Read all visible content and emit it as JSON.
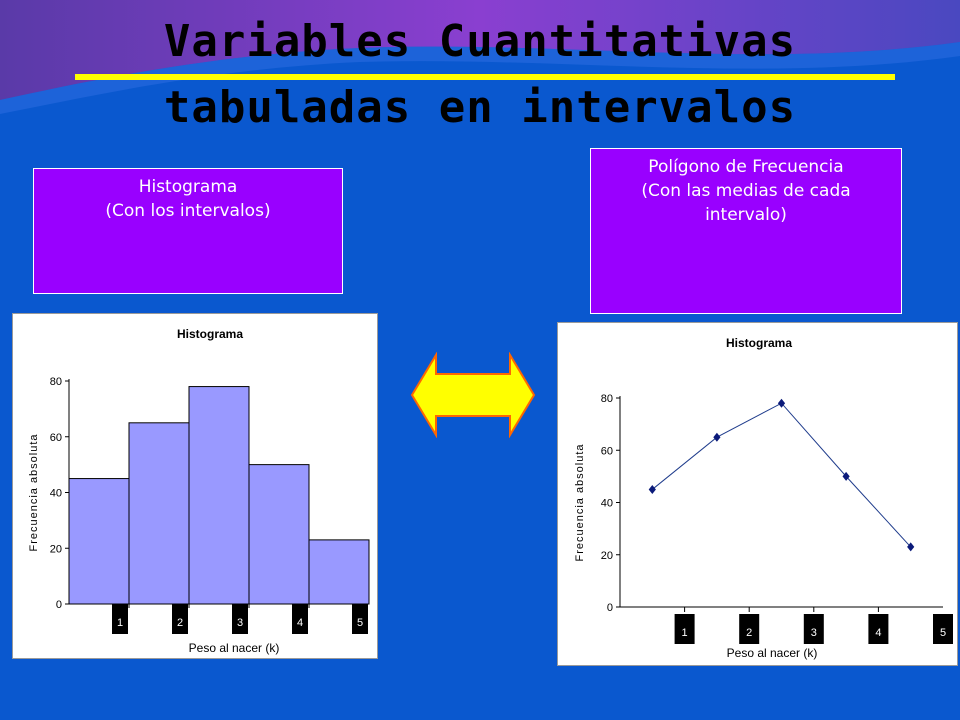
{
  "title": {
    "line1": "Variables Cuantitativas",
    "line2": "tabuladas en intervalos"
  },
  "boxes": {
    "left": {
      "line1": "Histograma",
      "line2": "(Con los intervalos)"
    },
    "right": {
      "line1": "Polígono de Frecuencia",
      "line2": "(Con las medias de cada",
      "line3": "intervalo)"
    }
  },
  "colors": {
    "background": "#0a58cf",
    "title_rule": "#ffff00",
    "box_fill": "#9900ff",
    "bar_fill": "#9999ff",
    "line": "#1f3c8c",
    "marker": "#0b1a7a",
    "arrow_fill": "#ffff00",
    "arrow_stroke": "#ff6600"
  },
  "arrow_icon": "double-arrow-icon",
  "chart_data": [
    {
      "type": "bar",
      "title": "Histograma",
      "xlabel": "Peso al nacer (k)",
      "ylabel": "Frecuencia absoluta",
      "categories": [
        "1",
        "2",
        "3",
        "4",
        "5"
      ],
      "values": [
        45,
        65,
        78,
        50,
        23
      ],
      "ylim": [
        0,
        80
      ],
      "yticks": [
        "0",
        "20",
        "40",
        "60",
        "80"
      ],
      "grid": false,
      "legend": "none"
    },
    {
      "type": "line",
      "title": "Histograma",
      "xlabel": "Peso al nacer (k)",
      "ylabel": "Frecuencia absoluta",
      "categories": [
        "1",
        "2",
        "3",
        "4",
        "5"
      ],
      "values": [
        45,
        65,
        78,
        50,
        23
      ],
      "ylim": [
        0,
        80
      ],
      "yticks": [
        "0",
        "20",
        "40",
        "60",
        "80"
      ],
      "grid": false,
      "legend": "none"
    }
  ]
}
